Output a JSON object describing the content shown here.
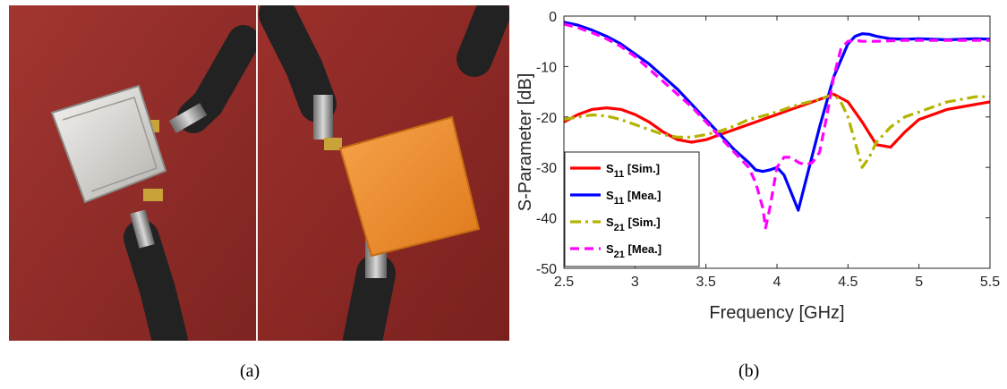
{
  "captions": {
    "a": "(a)",
    "b": "(b)"
  },
  "photo": {
    "description_icons": [
      "metal-plate-antenna",
      "orange-substrate-board",
      "sma-connectors",
      "coaxial-cables"
    ],
    "colors": {
      "background": "#8e2a26",
      "plate": "#c9c7c2",
      "substrate": "#f08d2c",
      "cable": "#2a2a2a",
      "connector": "#c9a23a"
    }
  },
  "chart_data": {
    "type": "line",
    "xlabel": "Frequency [GHz]",
    "ylabel": "S-Parameter [dB]",
    "xlim": [
      2.5,
      5.5
    ],
    "ylim": [
      -50,
      0
    ],
    "xticks": [
      "2.5",
      "3",
      "3.5",
      "4",
      "4.5",
      "5",
      "5.5"
    ],
    "yticks": [
      "0",
      "-10",
      "-20",
      "-30",
      "-40",
      "-50"
    ],
    "grid": false,
    "legend_placement": "bottom-left",
    "series": [
      {
        "name_main": "S",
        "name_sub": "11",
        "name_suffix": "[Sim.]",
        "color": "#ff0000",
        "dash": "solid",
        "x": [
          2.5,
          2.6,
          2.7,
          2.8,
          2.9,
          3.0,
          3.1,
          3.2,
          3.3,
          3.4,
          3.5,
          3.6,
          3.7,
          3.8,
          3.9,
          4.0,
          4.1,
          4.2,
          4.3,
          4.4,
          4.5,
          4.6,
          4.7,
          4.8,
          4.9,
          5.0,
          5.1,
          5.2,
          5.3,
          5.4,
          5.5
        ],
        "values": [
          -21,
          -19.5,
          -18.5,
          -18.2,
          -18.5,
          -19.5,
          -21,
          -23,
          -24.5,
          -25,
          -24.5,
          -23.5,
          -22.5,
          -21.5,
          -20.5,
          -19.5,
          -18.5,
          -17.5,
          -16.5,
          -15.5,
          -17,
          -21,
          -25.5,
          -26,
          -23,
          -20.5,
          -19.5,
          -18.5,
          -18,
          -17.5,
          -17
        ]
      },
      {
        "name_main": "S",
        "name_sub": "11",
        "name_suffix": "[Mea.]",
        "color": "#0000ff",
        "dash": "solid",
        "x": [
          2.5,
          2.6,
          2.7,
          2.8,
          2.9,
          3.0,
          3.1,
          3.2,
          3.3,
          3.4,
          3.5,
          3.6,
          3.7,
          3.8,
          3.85,
          3.9,
          3.95,
          4.0,
          4.05,
          4.1,
          4.15,
          4.2,
          4.3,
          4.4,
          4.5,
          4.55,
          4.6,
          4.65,
          4.7,
          4.8,
          4.9,
          5.0,
          5.1,
          5.2,
          5.3,
          5.4,
          5.5
        ],
        "values": [
          -1.2,
          -1.8,
          -2.8,
          -4.0,
          -5.5,
          -7.5,
          -9.5,
          -12,
          -14.5,
          -17.5,
          -20.5,
          -23.5,
          -26.5,
          -29,
          -30.5,
          -30.8,
          -30.5,
          -30,
          -31.5,
          -35,
          -38.5,
          -33,
          -22,
          -12,
          -5.5,
          -4,
          -3.5,
          -3.6,
          -4,
          -4.5,
          -4.6,
          -4.5,
          -4.6,
          -4.7,
          -4.6,
          -4.5,
          -4.6
        ]
      },
      {
        "name_main": "S",
        "name_sub": "21",
        "name_suffix": "[Sim.]",
        "color": "#b3b300",
        "dash": "dashdot",
        "x": [
          2.5,
          2.6,
          2.7,
          2.8,
          2.9,
          3.0,
          3.1,
          3.2,
          3.3,
          3.4,
          3.5,
          3.6,
          3.7,
          3.8,
          3.9,
          4.0,
          4.1,
          4.2,
          4.3,
          4.4,
          4.45,
          4.5,
          4.55,
          4.6,
          4.65,
          4.7,
          4.8,
          4.9,
          5.0,
          5.1,
          5.2,
          5.3,
          5.4,
          5.5
        ],
        "values": [
          -20.5,
          -20,
          -19.6,
          -19.8,
          -20.5,
          -21.5,
          -22.5,
          -23.5,
          -24,
          -24,
          -23.5,
          -22.8,
          -21.8,
          -20.5,
          -19.8,
          -19,
          -18,
          -17.2,
          -16.5,
          -15.5,
          -17,
          -20,
          -25,
          -30,
          -28,
          -25,
          -22,
          -20,
          -19,
          -18,
          -17,
          -16.5,
          -16,
          -16
        ]
      },
      {
        "name_main": "S",
        "name_sub": "21",
        "name_suffix": "[Mea.]",
        "color": "#ff00ff",
        "dash": "dashed",
        "x": [
          2.5,
          2.6,
          2.7,
          2.8,
          2.9,
          3.0,
          3.1,
          3.2,
          3.3,
          3.4,
          3.5,
          3.6,
          3.7,
          3.8,
          3.85,
          3.9,
          3.92,
          3.95,
          4.0,
          4.05,
          4.1,
          4.15,
          4.2,
          4.25,
          4.3,
          4.35,
          4.4,
          4.45,
          4.5,
          4.55,
          4.6,
          4.7,
          4.8,
          4.9,
          5.0,
          5.1,
          5.2,
          5.3,
          5.4,
          5.5
        ],
        "values": [
          -1.6,
          -2.3,
          -3.3,
          -4.5,
          -6,
          -8,
          -10.5,
          -13,
          -15.5,
          -18,
          -21,
          -24,
          -27,
          -30,
          -33,
          -38,
          -42,
          -38,
          -30,
          -28,
          -28,
          -29,
          -29.5,
          -29,
          -27,
          -20,
          -12,
          -6.5,
          -5,
          -4.8,
          -5,
          -5,
          -4.9,
          -4.8,
          -4.8,
          -4.8,
          -4.8,
          -4.8,
          -4.8,
          -4.8
        ]
      }
    ]
  }
}
